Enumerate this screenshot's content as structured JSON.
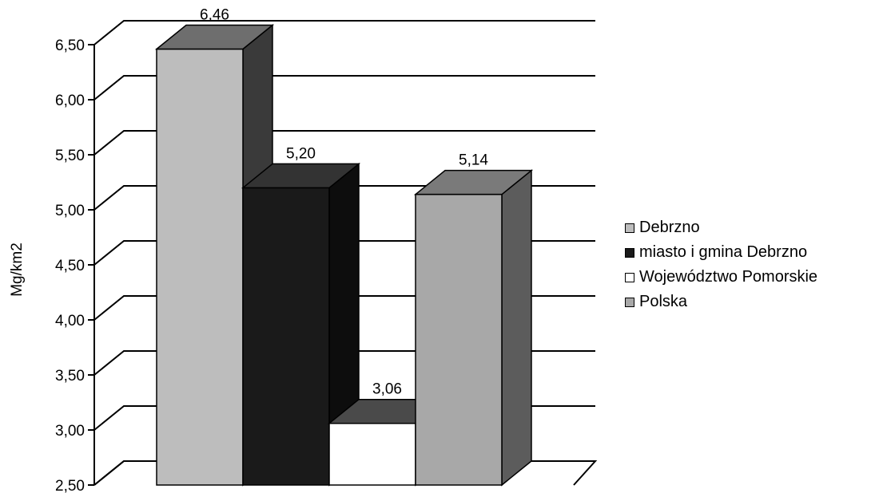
{
  "chart_data": {
    "type": "bar",
    "categories": [
      "Debrzno",
      "miasto i gmina Debrzno",
      "Województwo Pomorskie",
      "Polska"
    ],
    "values": [
      6.46,
      5.2,
      3.06,
      5.14
    ],
    "value_labels": [
      "6,46",
      "5,20",
      "3,06",
      "5,14"
    ],
    "ylabel": "Mg/km2",
    "ylim": [
      2.5,
      6.5
    ],
    "yticks": [
      {
        "v": 6.5,
        "label": "6,50"
      },
      {
        "v": 6.0,
        "label": "6,00"
      },
      {
        "v": 5.5,
        "label": "5,50"
      },
      {
        "v": 5.0,
        "label": "5,00"
      },
      {
        "v": 4.5,
        "label": "4,50"
      },
      {
        "v": 4.0,
        "label": "4,00"
      },
      {
        "v": 3.5,
        "label": "3,50"
      },
      {
        "v": 3.0,
        "label": "3,00"
      },
      {
        "v": 2.5,
        "label": "2,50"
      }
    ],
    "grid": true,
    "style": "3d-column",
    "legend_position": "right",
    "series_colors": {
      "front": [
        "#bdbdbd",
        "#1a1a1a",
        "#ffffff",
        "#a8a8a8"
      ],
      "side": [
        "#3a3a3a",
        "#0d0d0d",
        "#9a9a9a",
        "#5c5c5c"
      ],
      "top": [
        "#6e6e6e",
        "#333333",
        "#4a4a4a",
        "#7a7a7a"
      ]
    }
  },
  "legend": [
    {
      "label": "Debrzno",
      "color": "#bdbdbd",
      "name": "legend-item-debrzno"
    },
    {
      "label": "miasto i gmina Debrzno",
      "color": "#1a1a1a",
      "name": "legend-item-miasto-i-gmina"
    },
    {
      "label": "Województwo Pomorskie",
      "color": "#ffffff",
      "name": "legend-item-wojewodztwo"
    },
    {
      "label": "Polska",
      "color": "#a8a8a8",
      "name": "legend-item-polska"
    }
  ]
}
